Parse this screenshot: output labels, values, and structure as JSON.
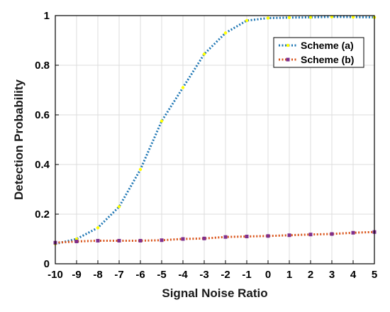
{
  "chart_data": {
    "type": "line",
    "xlabel": "Signal Noise Ratio",
    "ylabel": "Detection Probability",
    "x": [
      -10,
      -9,
      -8,
      -7,
      -6,
      -5,
      -4,
      -3,
      -2,
      -1,
      0,
      1,
      2,
      3,
      4,
      5
    ],
    "xticks": [
      "-10",
      "-9",
      "-8",
      "-7",
      "-6",
      "-5",
      "-4",
      "-3",
      "-2",
      "-1",
      "0",
      "1",
      "2",
      "3",
      "4",
      "5"
    ],
    "yticks": [
      "0",
      "0.2",
      "0.4",
      "0.6",
      "0.8",
      "1"
    ],
    "xlim": [
      -10,
      5
    ],
    "ylim": [
      0,
      1
    ],
    "grid": true,
    "legend_position": "top-right",
    "series": [
      {
        "name": "Scheme (a)",
        "values": [
          0.08,
          0.1,
          0.145,
          0.23,
          0.38,
          0.575,
          0.71,
          0.845,
          0.93,
          0.98,
          0.99,
          0.992,
          0.993,
          0.995,
          0.994,
          0.993
        ],
        "line_color": "#1f77b4",
        "marker_color": "#ffff00",
        "marker": "dot"
      },
      {
        "name": "Scheme (b)",
        "values": [
          0.085,
          0.09,
          0.093,
          0.093,
          0.093,
          0.095,
          0.1,
          0.102,
          0.108,
          0.11,
          0.112,
          0.115,
          0.118,
          0.12,
          0.125,
          0.128
        ],
        "line_color": "#d95319",
        "marker_color": "#7e2f8e",
        "marker": "square"
      }
    ]
  }
}
